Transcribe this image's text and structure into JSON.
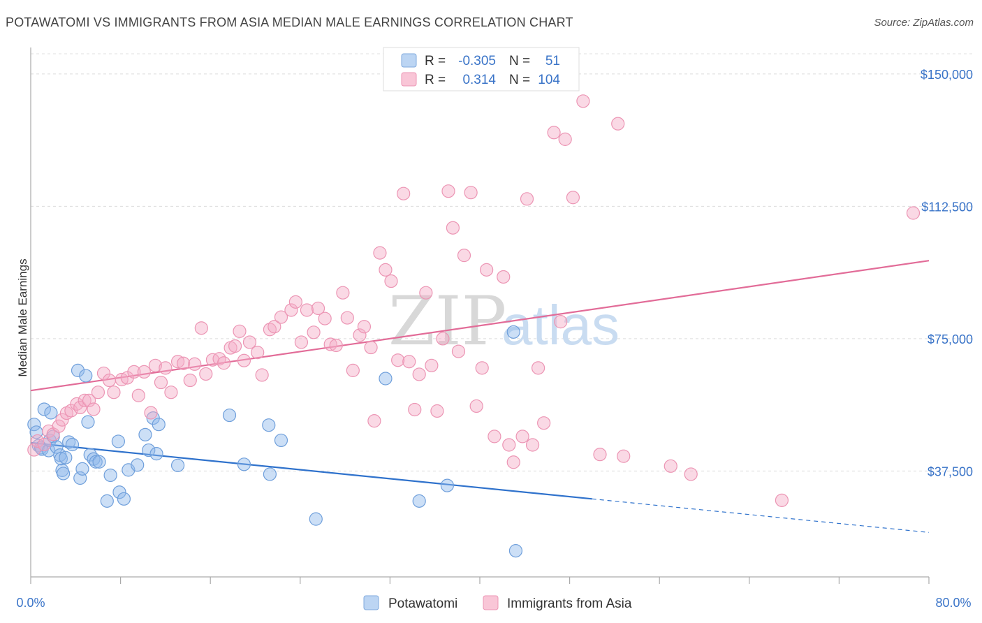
{
  "title": "POTAWATOMI VS IMMIGRANTS FROM ASIA MEDIAN MALE EARNINGS CORRELATION CHART",
  "source": "Source: ZipAtlas.com",
  "watermark": {
    "zip": "ZIP",
    "atlas": "atlas"
  },
  "legend": {
    "rows": [
      {
        "r_label": "R =",
        "r_value": "-0.305",
        "n_label": "N =",
        "n_value": "51"
      },
      {
        "r_label": "R =",
        "r_value": "0.314",
        "n_label": "N =",
        "n_value": "104"
      }
    ]
  },
  "chart_data": {
    "type": "scatter",
    "title": "POTAWATOMI VS IMMIGRANTS FROM ASIA MEDIAN MALE EARNINGS CORRELATION CHART",
    "xlabel": "",
    "ylabel": "Median Male Earnings",
    "xlim": [
      0,
      80
    ],
    "ylim": [
      7500,
      157500
    ],
    "x_tick_labels": [
      "0.0%",
      "80.0%"
    ],
    "y_ticks": [
      37500,
      75000,
      112500,
      150000
    ],
    "y_tick_labels": [
      "$37,500",
      "$75,000",
      "$112,500",
      "$150,000"
    ],
    "grid": true,
    "legend_position": "top-center",
    "series": [
      {
        "name": "Potawatomi",
        "color": "#8fb8ea",
        "line_color": "#2f72cc",
        "trend": {
          "x0": 0,
          "y0": 45500,
          "x1": 50,
          "y1": 29600,
          "dash_to_x": 80,
          "dash_to_y": 20100
        },
        "points": [
          [
            0.3,
            50700
          ],
          [
            0.5,
            48500
          ],
          [
            0.7,
            44700
          ],
          [
            0.9,
            44100
          ],
          [
            1.0,
            43700
          ],
          [
            1.2,
            55000
          ],
          [
            1.6,
            43300
          ],
          [
            1.7,
            46200
          ],
          [
            1.8,
            54000
          ],
          [
            2.0,
            47300
          ],
          [
            2.3,
            44300
          ],
          [
            2.6,
            42000
          ],
          [
            2.7,
            41000
          ],
          [
            2.8,
            37700
          ],
          [
            2.9,
            36800
          ],
          [
            3.1,
            41300
          ],
          [
            3.4,
            45700
          ],
          [
            3.7,
            45000
          ],
          [
            4.2,
            66000
          ],
          [
            4.4,
            35500
          ],
          [
            4.6,
            38100
          ],
          [
            4.9,
            64500
          ],
          [
            5.1,
            51400
          ],
          [
            5.3,
            42100
          ],
          [
            5.6,
            40900
          ],
          [
            5.8,
            40100
          ],
          [
            6.1,
            40100
          ],
          [
            6.8,
            29000
          ],
          [
            7.1,
            36300
          ],
          [
            7.8,
            45900
          ],
          [
            7.9,
            31500
          ],
          [
            8.3,
            29600
          ],
          [
            8.7,
            37800
          ],
          [
            9.5,
            39200
          ],
          [
            10.2,
            47800
          ],
          [
            10.5,
            43400
          ],
          [
            11.2,
            42400
          ],
          [
            10.9,
            52500
          ],
          [
            11.4,
            50700
          ],
          [
            13.1,
            39100
          ],
          [
            17.7,
            53300
          ],
          [
            19.0,
            39400
          ],
          [
            21.2,
            50500
          ],
          [
            21.3,
            36600
          ],
          [
            22.3,
            46200
          ],
          [
            25.4,
            23900
          ],
          [
            31.6,
            63700
          ],
          [
            34.6,
            29000
          ],
          [
            37.1,
            33400
          ],
          [
            43.0,
            76900
          ],
          [
            43.2,
            14900
          ]
        ]
      },
      {
        "name": "Immigrants from Asia",
        "color": "#f4aac6",
        "line_color": "#e26c98",
        "trend": {
          "x0": 0,
          "y0": 60300,
          "x1": 80,
          "y1": 97100
        },
        "points": [
          [
            0.3,
            43500
          ],
          [
            0.6,
            46000
          ],
          [
            1.2,
            45000
          ],
          [
            1.6,
            48800
          ],
          [
            2.0,
            47900
          ],
          [
            2.5,
            50200
          ],
          [
            2.8,
            52000
          ],
          [
            3.2,
            53900
          ],
          [
            3.6,
            54600
          ],
          [
            4.1,
            56500
          ],
          [
            4.4,
            55500
          ],
          [
            4.8,
            57500
          ],
          [
            5.2,
            57500
          ],
          [
            5.6,
            55000
          ],
          [
            6.0,
            59800
          ],
          [
            6.5,
            65200
          ],
          [
            7.0,
            63200
          ],
          [
            7.4,
            59800
          ],
          [
            8.1,
            63400
          ],
          [
            8.6,
            63900
          ],
          [
            9.2,
            65600
          ],
          [
            9.6,
            58900
          ],
          [
            10.1,
            65600
          ],
          [
            10.7,
            54000
          ],
          [
            11.1,
            67400
          ],
          [
            11.6,
            62600
          ],
          [
            12.0,
            66700
          ],
          [
            12.5,
            59800
          ],
          [
            13.1,
            68500
          ],
          [
            13.6,
            68000
          ],
          [
            14.2,
            63200
          ],
          [
            14.6,
            67800
          ],
          [
            15.2,
            78000
          ],
          [
            15.6,
            65000
          ],
          [
            16.2,
            69000
          ],
          [
            16.8,
            69300
          ],
          [
            17.2,
            68100
          ],
          [
            17.8,
            72400
          ],
          [
            18.2,
            72900
          ],
          [
            18.6,
            77100
          ],
          [
            19.0,
            68800
          ],
          [
            19.5,
            74000
          ],
          [
            20.2,
            71100
          ],
          [
            20.6,
            64700
          ],
          [
            21.3,
            77600
          ],
          [
            21.7,
            78400
          ],
          [
            22.3,
            81100
          ],
          [
            23.2,
            83100
          ],
          [
            23.6,
            85400
          ],
          [
            24.1,
            74000
          ],
          [
            24.6,
            83100
          ],
          [
            25.2,
            76800
          ],
          [
            25.6,
            83600
          ],
          [
            26.2,
            80700
          ],
          [
            26.7,
            73400
          ],
          [
            27.2,
            73100
          ],
          [
            27.8,
            88000
          ],
          [
            28.2,
            80900
          ],
          [
            28.7,
            66000
          ],
          [
            29.3,
            76000
          ],
          [
            29.7,
            78400
          ],
          [
            30.3,
            72500
          ],
          [
            30.6,
            51700
          ],
          [
            31.1,
            99300
          ],
          [
            31.6,
            94500
          ],
          [
            32.1,
            91300
          ],
          [
            32.7,
            68900
          ],
          [
            33.2,
            116100
          ],
          [
            33.7,
            68500
          ],
          [
            34.2,
            54900
          ],
          [
            34.6,
            64900
          ],
          [
            35.2,
            88000
          ],
          [
            35.7,
            67400
          ],
          [
            36.2,
            54500
          ],
          [
            36.7,
            75000
          ],
          [
            37.2,
            116800
          ],
          [
            37.6,
            106400
          ],
          [
            38.1,
            71400
          ],
          [
            38.6,
            98600
          ],
          [
            39.2,
            116400
          ],
          [
            39.7,
            55900
          ],
          [
            40.2,
            66700
          ],
          [
            40.6,
            94500
          ],
          [
            41.3,
            47300
          ],
          [
            42.1,
            92500
          ],
          [
            42.6,
            44900
          ],
          [
            43.0,
            40000
          ],
          [
            43.8,
            47300
          ],
          [
            44.2,
            114600
          ],
          [
            44.7,
            44900
          ],
          [
            45.2,
            66700
          ],
          [
            45.7,
            51100
          ],
          [
            46.6,
            133400
          ],
          [
            47.2,
            79800
          ],
          [
            47.6,
            131500
          ],
          [
            48.3,
            115000
          ],
          [
            49.2,
            142300
          ],
          [
            50.7,
            42200
          ],
          [
            52.3,
            135900
          ],
          [
            52.8,
            41700
          ],
          [
            57.0,
            38900
          ],
          [
            58.8,
            36600
          ],
          [
            66.9,
            29200
          ],
          [
            78.6,
            110600
          ]
        ]
      }
    ]
  },
  "bottom_legend": [
    "Potawatomi",
    "Immigrants from Asia"
  ]
}
